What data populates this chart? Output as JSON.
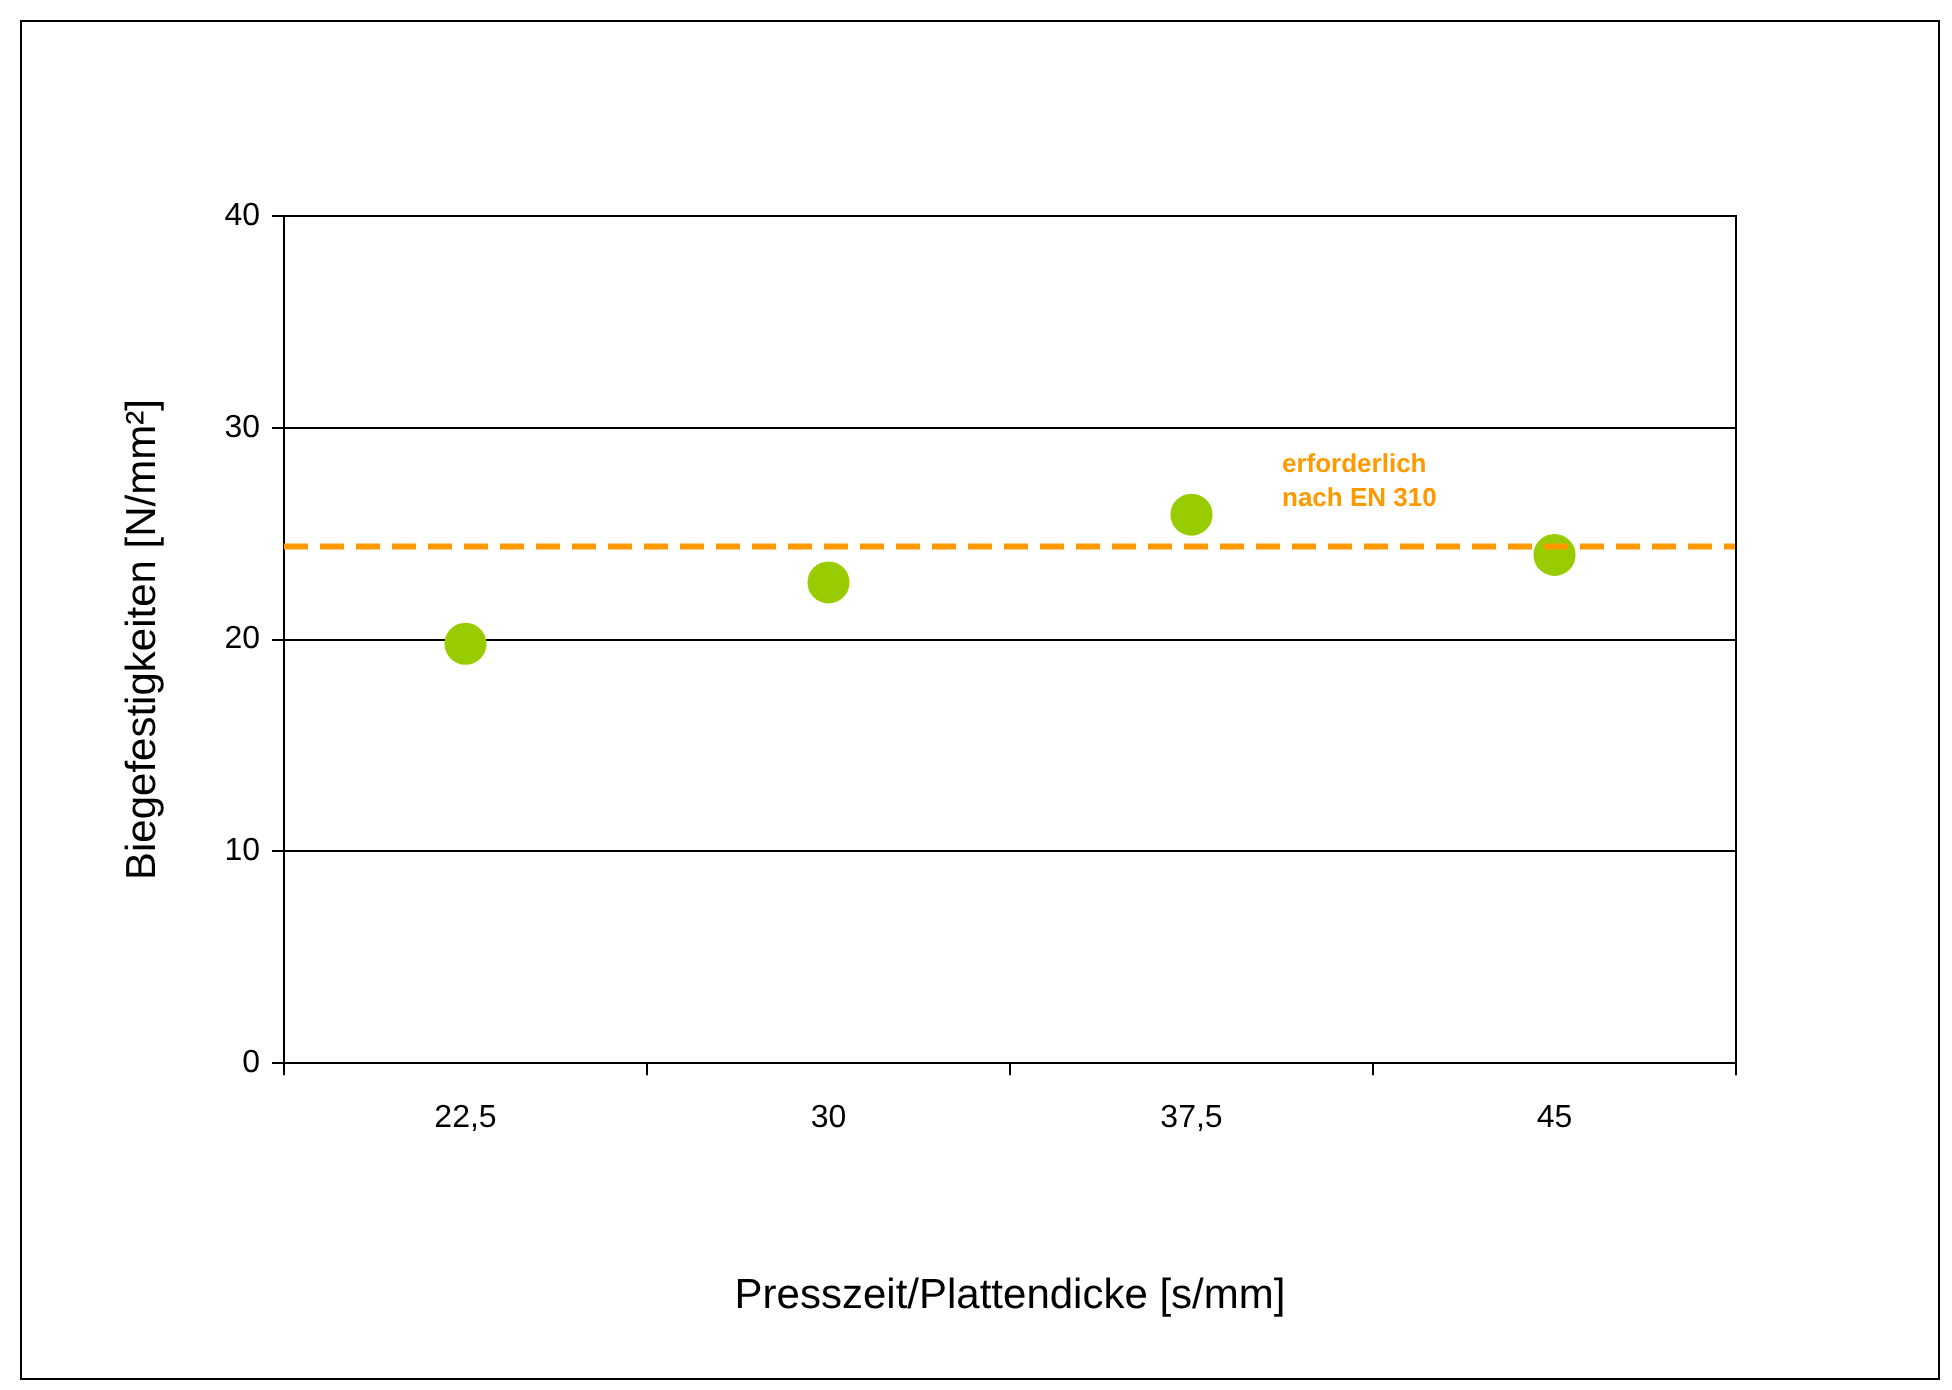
{
  "chart_data": {
    "type": "scatter",
    "xlabel": "Presszeit/Plattendicke [s/mm]",
    "ylabel": "Biegefestigkeiten [N/mm²]",
    "categories": [
      "22,5",
      "30",
      "37,5",
      "45"
    ],
    "values": [
      19.8,
      22.7,
      25.9,
      24.0
    ],
    "color": "#99cc00",
    "marker": "circle",
    "ylim": [
      0,
      40
    ],
    "yticks": [
      0,
      10,
      20,
      30,
      40
    ],
    "grid": "y",
    "legend": false,
    "ref_lines": [
      {
        "axis": "y",
        "value": 24.4,
        "label": "erforderlich\nnach EN 310",
        "color": "#ff9900",
        "line_style": "dashed"
      }
    ]
  }
}
